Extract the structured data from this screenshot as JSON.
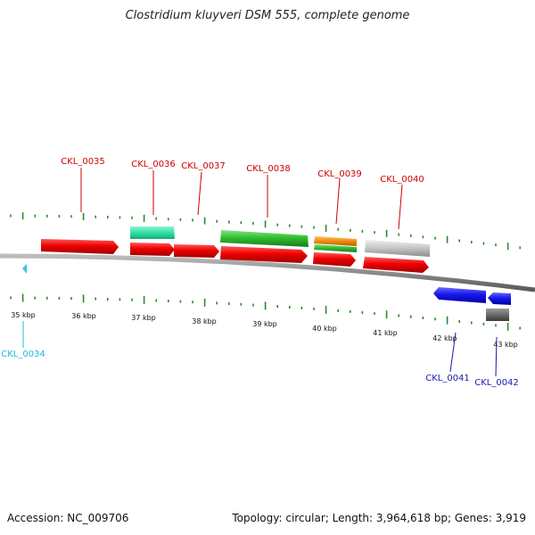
{
  "title": "Clostridium kluyveri DSM 555, complete genome",
  "footer": {
    "accession": "Accession: NC_009706",
    "summary": "Topology: circular; Length: 3,964,618 bp; Genes: 3,919"
  },
  "colors": {
    "label_red": "#cc0000",
    "label_cyan": "#22b8dd",
    "label_blue": "#1a1aaa",
    "tick_green": "#2a8a2a",
    "backbone": "#888888"
  },
  "scale_labels": [
    "35 kbp",
    "36 kbp",
    "37 kbp",
    "38 kbp",
    "39 kbp",
    "40 kbp",
    "41 kbp",
    "42 kbp",
    "43 kbp"
  ],
  "genes": [
    {
      "label": "CKL_0034",
      "color": "cyan"
    },
    {
      "label": "CKL_0035",
      "color": "red"
    },
    {
      "label": "CKL_0036",
      "color": "red"
    },
    {
      "label": "CKL_0037",
      "color": "red"
    },
    {
      "label": "CKL_0038",
      "color": "red"
    },
    {
      "label": "CKL_0039",
      "color": "red"
    },
    {
      "label": "CKL_0040",
      "color": "red"
    },
    {
      "label": "CKL_0041",
      "color": "blue"
    },
    {
      "label": "CKL_0042",
      "color": "blue"
    }
  ]
}
